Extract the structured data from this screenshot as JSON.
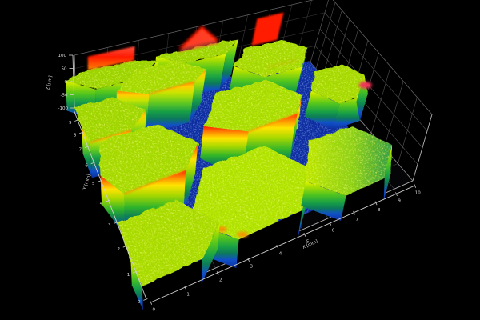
{
  "chart_data": {
    "type": "surface3d",
    "title": "",
    "description": "3D optical profilometry surface map of hexagonal micro-pillar array on a dark substrate, rainbow height colormap (blue low, green/yellow plateau, red peaks)",
    "axes": {
      "x": {
        "label": "X [mm]",
        "ticks": [
          "0",
          "1",
          "2",
          "3",
          "4",
          "5",
          "6",
          "7",
          "8",
          "9",
          "10"
        ],
        "range": [
          0,
          10
        ]
      },
      "y": {
        "label": "Y [mm]",
        "ticks": [
          "0",
          "1",
          "2",
          "3",
          "4",
          "5",
          "6",
          "7",
          "8",
          "9"
        ],
        "range": [
          0,
          10
        ]
      },
      "z": {
        "label": "Z [µm]",
        "ticks": [
          "100",
          "50",
          "-0",
          "-50",
          "-100"
        ],
        "tick_values": [
          100,
          50,
          0,
          -50,
          -100
        ],
        "range": [
          -100,
          100
        ]
      }
    },
    "grid": true,
    "legend": false,
    "colormap": {
      "name": "rainbow",
      "low": "#0b2f9e",
      "mid": "#58c81e",
      "high": "#ff1e00"
    },
    "floor_z_um": -100,
    "moat_z_um": -95,
    "hexagons": [
      {
        "x_mm": 4.3,
        "y_mm": 10.4,
        "r_mm": 1.6,
        "top_z_um": 15,
        "peak_z_um": 85,
        "top_color": "#9cd400",
        "features": [
          "red_back_peak"
        ]
      },
      {
        "x_mm": 1.2,
        "y_mm": 9.9,
        "r_mm": 1.5,
        "top_z_um": 15,
        "peak_z_um": 65,
        "top_color": "#9cd400",
        "features": [
          "red_back_band"
        ]
      },
      {
        "x_mm": 2.6,
        "y_mm": 8.2,
        "r_mm": 1.55,
        "top_z_um": 10,
        "peak_z_um": 40,
        "top_color": "#a6da00",
        "features": [
          "orange_front_rim"
        ]
      },
      {
        "x_mm": 6.9,
        "y_mm": 8.0,
        "r_mm": 1.7,
        "top_z_um": 5,
        "peak_z_um": 95,
        "top_color": "#a6da00",
        "features": [
          "orange_front_streak",
          "red_back_spike"
        ]
      },
      {
        "x_mm": 0.1,
        "y_mm": 6.6,
        "r_mm": 1.6,
        "top_z_um": 0,
        "peak_z_um": 35,
        "top_color": "#a0d600",
        "features": [
          "orange_front_rim"
        ]
      },
      {
        "x_mm": 9.2,
        "y_mm": 5.2,
        "r_mm": 1.5,
        "top_z_um": -20,
        "peak_z_um": 30,
        "top_color": "#a6da00",
        "features": [
          "red_corner_spot"
        ]
      },
      {
        "x_mm": 5.0,
        "y_mm": 4.6,
        "r_mm": 1.9,
        "top_z_um": 10,
        "peak_z_um": 60,
        "top_color": "#aade00",
        "features": [
          "red_front_band"
        ]
      },
      {
        "x_mm": 0.9,
        "y_mm": 3.9,
        "r_mm": 1.8,
        "top_z_um": 10,
        "peak_z_um": 60,
        "top_color": "#a6da00",
        "features": [
          "red_front_band"
        ]
      },
      {
        "x_mm": 3.6,
        "y_mm": 1.0,
        "r_mm": 2.1,
        "top_z_um": 0,
        "peak_z_um": 0,
        "top_color": "#b2e400",
        "features": [
          "front_cut",
          "orange_spots"
        ]
      },
      {
        "x_mm": 7.3,
        "y_mm": 0.9,
        "r_mm": 1.9,
        "top_z_um": -20,
        "peak_z_um": 0,
        "top_color": "#b0e000",
        "features": [
          "front_cut",
          "slope_right"
        ]
      },
      {
        "x_mm": 0.6,
        "y_mm": 0.6,
        "r_mm": 1.7,
        "top_z_um": -10,
        "peak_z_um": 0,
        "top_color": "#aadc00",
        "features": [
          "front_cut"
        ]
      }
    ],
    "moat_region_mm": [
      [
        0,
        10
      ],
      [
        9.9,
        10
      ],
      [
        9.9,
        6.5
      ],
      [
        8.6,
        2.0
      ],
      [
        6.8,
        0.5
      ],
      [
        1.6,
        0.4
      ],
      [
        0,
        1.0
      ]
    ]
  },
  "colors": {
    "background": "#000000",
    "grid": "#5a5a5a",
    "grid_dim": "#3c3c3c",
    "box_edge": "#9a9a9a",
    "ruler": "#cfcfcf",
    "tick_text": "#dedede",
    "plateau_speckle_bright": "#eeff3a",
    "plateau_speckle_dark": "#4f9a00",
    "moat_base": "#0c2da5",
    "moat_speckle": "#4d7ef5",
    "hot_red": "#ff1a00",
    "hot_orange": "#ff8800",
    "wall_stops_plain": [
      [
        "0",
        "#e8f600"
      ],
      [
        "0.12",
        "#b0e000"
      ],
      [
        "0.34",
        "#50c41e"
      ],
      [
        "0.54",
        "#18a046"
      ],
      [
        "0.68",
        "#0c7a5a"
      ],
      [
        "0.82",
        "#1150c8"
      ],
      [
        "1",
        "#0b2f9e"
      ]
    ],
    "wall_stops_red": [
      [
        "0",
        "#ff1e00"
      ],
      [
        "0.12",
        "#ff9000"
      ],
      [
        "0.23",
        "#ffe400"
      ],
      [
        "0.38",
        "#a8d800"
      ],
      [
        "0.56",
        "#30b42a"
      ],
      [
        "0.70",
        "#0d8055"
      ],
      [
        "0.84",
        "#1150c8"
      ],
      [
        "1",
        "#0b2f9e"
      ]
    ],
    "wall_stops_orange": [
      [
        "0",
        "#ff8800"
      ],
      [
        "0.10",
        "#ffd000"
      ],
      [
        "0.22",
        "#c8e400"
      ],
      [
        "0.40",
        "#68cc1e"
      ],
      [
        "0.58",
        "#18a046"
      ],
      [
        "0.72",
        "#0c7a5a"
      ],
      [
        "0.85",
        "#1150c8"
      ],
      [
        "1",
        "#0b2f9e"
      ]
    ],
    "band_red_stops": [
      [
        "0",
        "#ff5040"
      ],
      [
        "0.45",
        "#ff1a00"
      ],
      [
        "1",
        "#ff8800"
      ]
    ],
    "slope_right_stops": [
      [
        "0",
        "#c0e800"
      ],
      [
        "0.55",
        "#8cd018"
      ],
      [
        "1",
        "#2f9a4a"
      ]
    ]
  }
}
